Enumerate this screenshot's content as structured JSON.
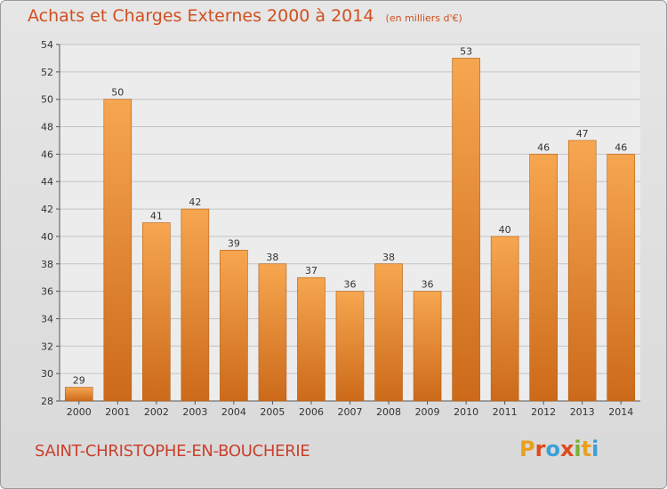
{
  "header": {
    "title": "Achats et Charges Externes 2000 à 2014",
    "unit": "(en milliers d'€)"
  },
  "footer": {
    "commune": "SAINT-CHRISTOPHE-EN-BOUCHERIE",
    "logo_text": "Proxiti"
  },
  "colors": {
    "bar_light": "#f7a650",
    "bar_dark": "#cc6a1a",
    "title": "#d0501f",
    "logo": [
      "#e8a020",
      "#e04a1c",
      "#3aa0d8",
      "#e04a1c",
      "#7ab030",
      "#e8a020",
      "#3aa0d8"
    ]
  },
  "chart_data": {
    "type": "bar",
    "title": "Achats et Charges Externes 2000 à 2014",
    "categories": [
      "2000",
      "2001",
      "2002",
      "2003",
      "2004",
      "2005",
      "2006",
      "2007",
      "2008",
      "2009",
      "2010",
      "2011",
      "2012",
      "2013",
      "2014"
    ],
    "values": [
      29,
      50,
      41,
      42,
      39,
      38,
      37,
      36,
      38,
      36,
      53,
      40,
      46,
      47,
      46
    ],
    "ylim": [
      28,
      54
    ],
    "yticks": [
      28,
      30,
      32,
      34,
      36,
      38,
      40,
      42,
      44,
      46,
      48,
      50,
      52,
      54
    ],
    "grid": true,
    "data_labels": true
  }
}
